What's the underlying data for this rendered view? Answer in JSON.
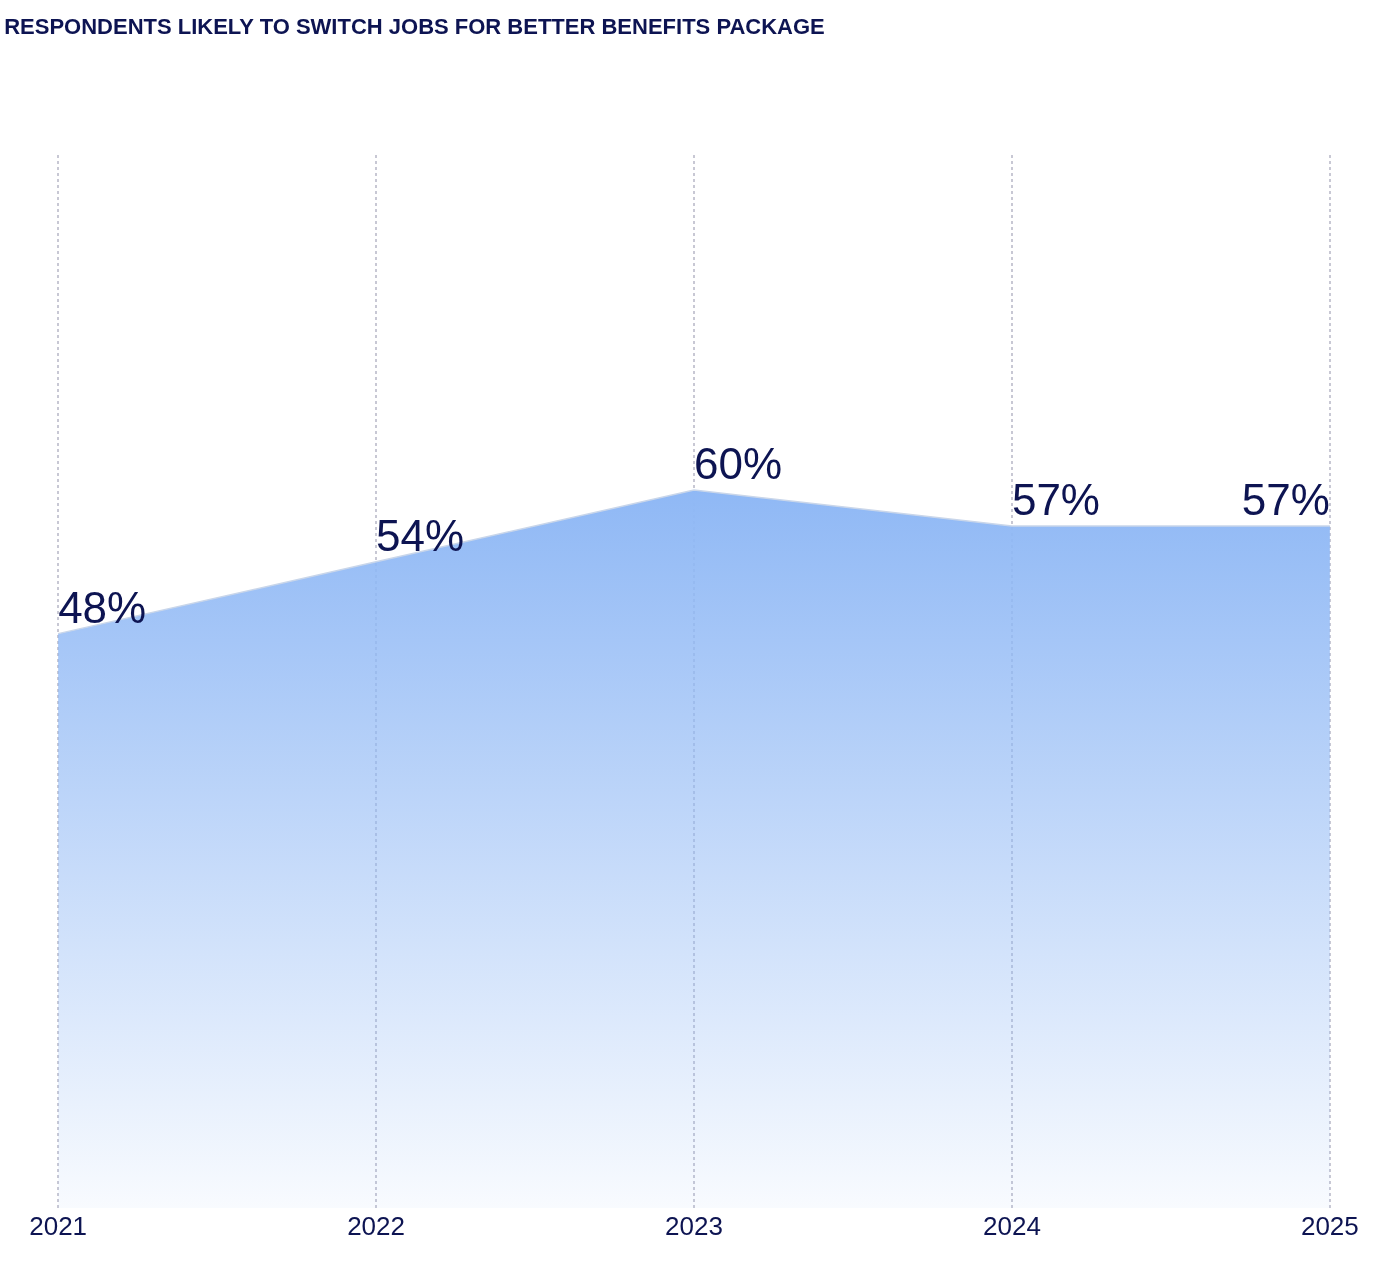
{
  "chart_data": {
    "type": "area",
    "title": "RESPONDENTS LIKELY TO SWITCH JOBS FOR BETTER BENEFITS PACKAGE",
    "categories": [
      "2021",
      "2022",
      "2023",
      "2024",
      "2025"
    ],
    "series": [
      {
        "color": "#8fb8f5",
        "values": [
          48,
          54,
          60,
          57,
          57
        ],
        "value_labels": [
          "48%",
          "54%",
          "60%",
          "57%",
          "57%"
        ]
      }
    ],
    "ylim": [
      0,
      88
    ],
    "grid": "x",
    "tick_labels": "x"
  }
}
